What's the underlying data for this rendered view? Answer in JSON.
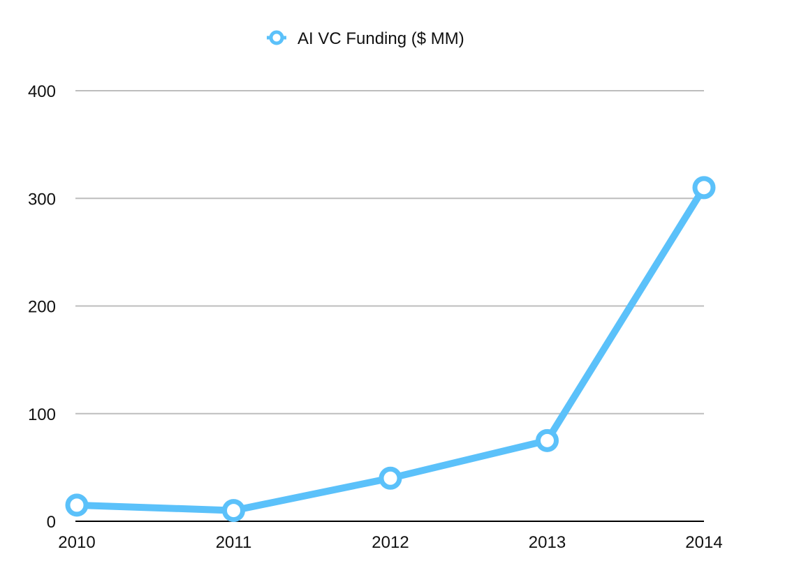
{
  "chart_data": {
    "type": "line",
    "x": [
      "2010",
      "2011",
      "2012",
      "2013",
      "2014"
    ],
    "series": [
      {
        "name": "AI VC Funding ($ MM)",
        "values": [
          15,
          10,
          40,
          75,
          310
        ]
      }
    ],
    "ylim": [
      0,
      400
    ],
    "yticks": [
      "0",
      "100",
      "200",
      "300",
      "400"
    ],
    "xticks": [
      "2010",
      "2011",
      "2012",
      "2013",
      "2014"
    ],
    "grid": true,
    "legend_position": "top-center",
    "colors": {
      "series": "#5bc1fa",
      "grid": "#bdbdbd",
      "axis": "#000000"
    }
  }
}
